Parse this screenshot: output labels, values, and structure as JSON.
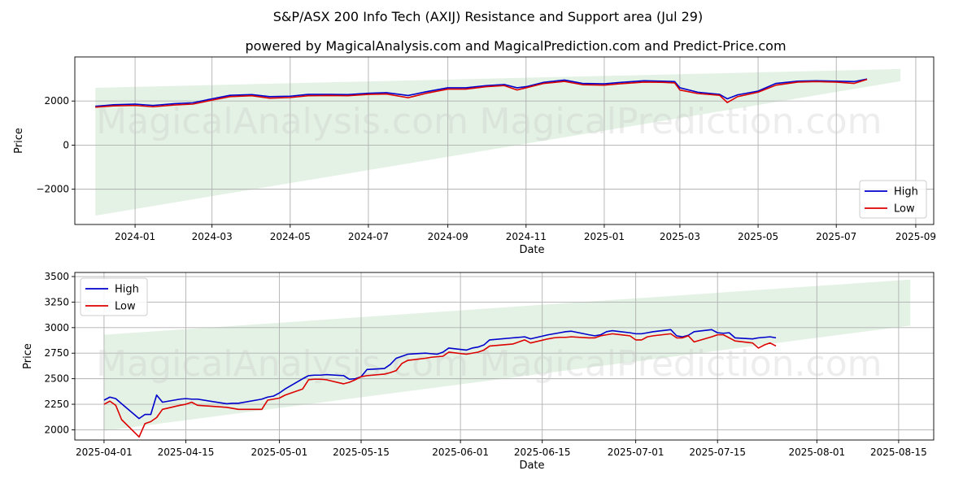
{
  "title": "S&P/ASX 200 Info Tech (AXIJ) Resistance and Support area (Jul 29)",
  "subtitle": "powered by MagicalAnalysis.com and MagicalPrediction.com and Predict-Price.com",
  "watermarks": [
    "MagicalAnalysis.com",
    "MagicalPrediction.com"
  ],
  "colors": {
    "high": "#0000cc",
    "low": "#dd0000",
    "band": "#c8e6c9"
  },
  "chart_data": [
    {
      "type": "line",
      "xlabel": "Date",
      "ylabel": "Price",
      "xlim": [
        "2023-11-15",
        "2025-09-15"
      ],
      "ylim": [
        -3600,
        4000
      ],
      "x_ticks": [
        "2024-01",
        "2024-03",
        "2024-05",
        "2024-07",
        "2024-09",
        "2024-11",
        "2025-01",
        "2025-03",
        "2025-05",
        "2025-07",
        "2025-09"
      ],
      "y_ticks": [
        -2000,
        0,
        2000
      ],
      "y_tick_labels": [
        "−2000",
        "0",
        "2000"
      ],
      "grid": true,
      "legend": "lower-right",
      "band": {
        "start": "2023-12-01",
        "end": "2025-08-20",
        "lower": [
          -3200,
          2900
        ],
        "upper": [
          2600,
          3450
        ]
      },
      "x": [
        "2023-12-01",
        "2023-12-15",
        "2024-01-01",
        "2024-01-15",
        "2024-02-01",
        "2024-02-15",
        "2024-03-01",
        "2024-03-15",
        "2024-04-01",
        "2024-04-15",
        "2024-05-01",
        "2024-05-15",
        "2024-06-01",
        "2024-06-15",
        "2024-07-01",
        "2024-07-15",
        "2024-08-01",
        "2024-08-15",
        "2024-09-01",
        "2024-09-15",
        "2024-10-01",
        "2024-10-15",
        "2024-10-25",
        "2024-11-01",
        "2024-11-15",
        "2024-12-01",
        "2024-12-15",
        "2025-01-01",
        "2025-01-15",
        "2025-02-01",
        "2025-02-15",
        "2025-02-25",
        "2025-03-01",
        "2025-03-15",
        "2025-04-01",
        "2025-04-07",
        "2025-04-15",
        "2025-05-01",
        "2025-05-15",
        "2025-06-01",
        "2025-06-15",
        "2025-07-01",
        "2025-07-15",
        "2025-07-25"
      ],
      "series": [
        {
          "name": "High",
          "values": [
            1760,
            1830,
            1860,
            1800,
            1880,
            1920,
            2100,
            2260,
            2290,
            2200,
            2220,
            2300,
            2300,
            2290,
            2350,
            2380,
            2250,
            2420,
            2600,
            2600,
            2700,
            2750,
            2600,
            2650,
            2850,
            2950,
            2800,
            2780,
            2850,
            2920,
            2900,
            2880,
            2600,
            2400,
            2300,
            2100,
            2280,
            2450,
            2800,
            2900,
            2920,
            2900,
            2880,
            3000
          ]
        },
        {
          "name": "Low",
          "values": [
            1720,
            1780,
            1800,
            1740,
            1820,
            1860,
            2040,
            2200,
            2240,
            2130,
            2160,
            2240,
            2250,
            2240,
            2300,
            2320,
            2150,
            2350,
            2540,
            2540,
            2650,
            2700,
            2500,
            2600,
            2800,
            2890,
            2740,
            2720,
            2790,
            2860,
            2850,
            2820,
            2500,
            2340,
            2260,
            1930,
            2200,
            2400,
            2720,
            2860,
            2880,
            2860,
            2800,
            2980
          ]
        }
      ]
    },
    {
      "type": "line",
      "xlabel": "Date",
      "ylabel": "Price",
      "xlim": [
        "2025-03-27",
        "2025-08-21"
      ],
      "ylim": [
        1900,
        3540
      ],
      "x_ticks": [
        "2025-04-01",
        "2025-04-15",
        "2025-05-01",
        "2025-05-15",
        "2025-06-01",
        "2025-06-15",
        "2025-07-01",
        "2025-07-15",
        "2025-08-01",
        "2025-08-15"
      ],
      "y_ticks": [
        2000,
        2250,
        2500,
        2750,
        3000,
        3250,
        3500
      ],
      "grid": true,
      "legend": "upper-left",
      "band": {
        "start": "2025-04-01",
        "end": "2025-08-17",
        "lower": [
          1990,
          3020
        ],
        "upper": [
          2930,
          3470
        ]
      },
      "x": [
        "2025-04-01",
        "2025-04-02",
        "2025-04-03",
        "2025-04-04",
        "2025-04-07",
        "2025-04-08",
        "2025-04-09",
        "2025-04-10",
        "2025-04-11",
        "2025-04-14",
        "2025-04-15",
        "2025-04-16",
        "2025-04-17",
        "2025-04-22",
        "2025-04-23",
        "2025-04-24",
        "2025-04-28",
        "2025-04-29",
        "2025-04-30",
        "2025-05-01",
        "2025-05-02",
        "2025-05-05",
        "2025-05-06",
        "2025-05-07",
        "2025-05-08",
        "2025-05-09",
        "2025-05-12",
        "2025-05-13",
        "2025-05-14",
        "2025-05-15",
        "2025-05-16",
        "2025-05-19",
        "2025-05-20",
        "2025-05-21",
        "2025-05-22",
        "2025-05-23",
        "2025-05-26",
        "2025-05-27",
        "2025-05-28",
        "2025-05-29",
        "2025-05-30",
        "2025-06-02",
        "2025-06-03",
        "2025-06-04",
        "2025-06-05",
        "2025-06-06",
        "2025-06-10",
        "2025-06-11",
        "2025-06-12",
        "2025-06-13",
        "2025-06-16",
        "2025-06-17",
        "2025-06-18",
        "2025-06-19",
        "2025-06-20",
        "2025-06-23",
        "2025-06-24",
        "2025-06-25",
        "2025-06-26",
        "2025-06-27",
        "2025-06-30",
        "2025-07-01",
        "2025-07-02",
        "2025-07-03",
        "2025-07-04",
        "2025-07-07",
        "2025-07-08",
        "2025-07-09",
        "2025-07-10",
        "2025-07-11",
        "2025-07-14",
        "2025-07-15",
        "2025-07-16",
        "2025-07-17",
        "2025-07-18",
        "2025-07-21",
        "2025-07-22",
        "2025-07-23",
        "2025-07-24",
        "2025-07-25"
      ],
      "series": [
        {
          "name": "High",
          "values": [
            2290,
            2320,
            2305,
            2255,
            2110,
            2150,
            2150,
            2340,
            2270,
            2300,
            2305,
            2300,
            2300,
            2255,
            2260,
            2260,
            2300,
            2320,
            2330,
            2360,
            2400,
            2500,
            2530,
            2535,
            2535,
            2540,
            2530,
            2495,
            2500,
            2520,
            2590,
            2600,
            2640,
            2700,
            2720,
            2740,
            2750,
            2745,
            2740,
            2760,
            2800,
            2780,
            2800,
            2810,
            2830,
            2880,
            2900,
            2905,
            2910,
            2890,
            2930,
            2940,
            2950,
            2960,
            2965,
            2930,
            2920,
            2930,
            2960,
            2970,
            2950,
            2940,
            2940,
            2950,
            2960,
            2980,
            2920,
            2910,
            2925,
            2960,
            2980,
            2950,
            2945,
            2950,
            2900,
            2890,
            2900,
            2905,
            2910,
            2900
          ]
        },
        {
          "name": "Low",
          "values": [
            2250,
            2280,
            2240,
            2100,
            1930,
            2060,
            2080,
            2120,
            2200,
            2240,
            2250,
            2270,
            2240,
            2220,
            2210,
            2200,
            2200,
            2290,
            2300,
            2310,
            2340,
            2400,
            2490,
            2495,
            2495,
            2490,
            2450,
            2465,
            2490,
            2520,
            2530,
            2545,
            2560,
            2580,
            2650,
            2680,
            2700,
            2710,
            2715,
            2720,
            2760,
            2740,
            2750,
            2760,
            2780,
            2820,
            2840,
            2860,
            2880,
            2850,
            2890,
            2900,
            2905,
            2905,
            2910,
            2900,
            2900,
            2920,
            2930,
            2940,
            2920,
            2880,
            2880,
            2910,
            2920,
            2940,
            2900,
            2900,
            2920,
            2860,
            2910,
            2930,
            2930,
            2900,
            2870,
            2850,
            2800,
            2830,
            2850,
            2820
          ]
        }
      ]
    }
  ]
}
